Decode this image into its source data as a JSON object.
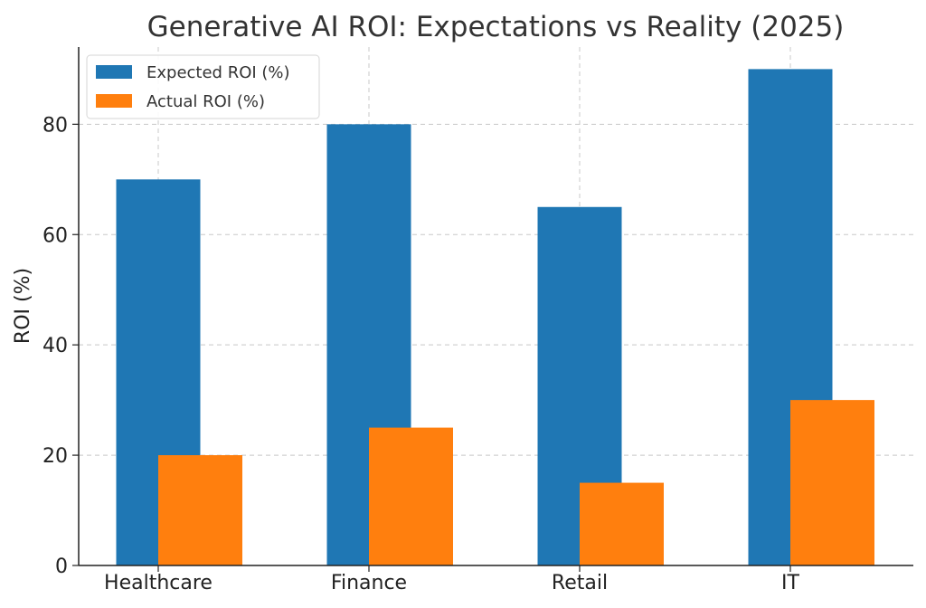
{
  "chart_data": {
    "type": "bar",
    "title": "Generative AI ROI: Expectations vs Reality (2025)",
    "xlabel": "",
    "ylabel": "ROI (%)",
    "categories": [
      "Healthcare",
      "Finance",
      "Retail",
      "IT"
    ],
    "series": [
      {
        "name": "Expected ROI (%)",
        "values": [
          70,
          80,
          65,
          90
        ],
        "color": "#1f77b4"
      },
      {
        "name": "Actual ROI (%)",
        "values": [
          20,
          25,
          15,
          30
        ],
        "color": "#ff7f0e"
      }
    ],
    "ylim": [
      0,
      94
    ],
    "yticks": [
      0,
      20,
      40,
      60,
      80
    ],
    "grid": true,
    "legend_position": "top-left"
  }
}
